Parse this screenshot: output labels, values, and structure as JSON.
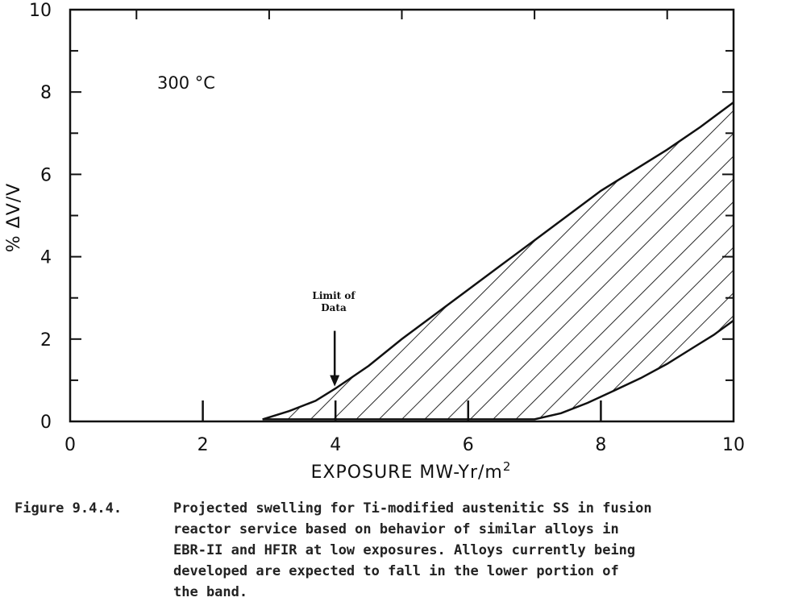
{
  "chart_data": {
    "type": "area",
    "xlabel": "EXPOSURE MW-Yr/m",
    "xlabel_sup": "2",
    "ylabel": "% ΔV/V",
    "xlim": [
      0,
      10
    ],
    "ylim": [
      0,
      10
    ],
    "x_ticks": [
      "0",
      "2",
      "4",
      "6",
      "8",
      "10"
    ],
    "y_ticks": [
      "0",
      "2",
      "4",
      "6",
      "8",
      "10"
    ],
    "grid": false,
    "temperature_label": "300 °C",
    "annotation": {
      "line1": "Limit of",
      "line2": "Data",
      "x": 4,
      "arrow_tip_y": 0.85,
      "arrow_tail_y": 2.2
    },
    "series": [
      {
        "role": "upper",
        "x": [
          2.9,
          3.3,
          3.7,
          4.0,
          4.5,
          5.0,
          5.5,
          6.0,
          6.5,
          7.0,
          7.5,
          8.0,
          8.5,
          9.0,
          9.5,
          10.0
        ],
        "y": [
          0.05,
          0.25,
          0.5,
          0.8,
          1.35,
          2.0,
          2.6,
          3.2,
          3.8,
          4.4,
          5.0,
          5.6,
          6.1,
          6.6,
          7.15,
          7.75
        ]
      },
      {
        "role": "lower",
        "x": [
          2.9,
          7.0,
          7.4,
          7.8,
          8.2,
          8.6,
          9.0,
          9.4,
          9.7,
          10.0
        ],
        "y": [
          0.05,
          0.05,
          0.2,
          0.45,
          0.75,
          1.05,
          1.4,
          1.8,
          2.1,
          2.45
        ]
      }
    ]
  },
  "caption": {
    "label": "Figure 9.4.4.",
    "text": "Projected swelling for Ti-modified austenitic SS in fusion\nreactor service based on behavior of similar alloys in\nEBR-II and HFIR at low exposures.  Alloys currently being\ndeveloped are expected to fall in the lower portion of\nthe band."
  }
}
